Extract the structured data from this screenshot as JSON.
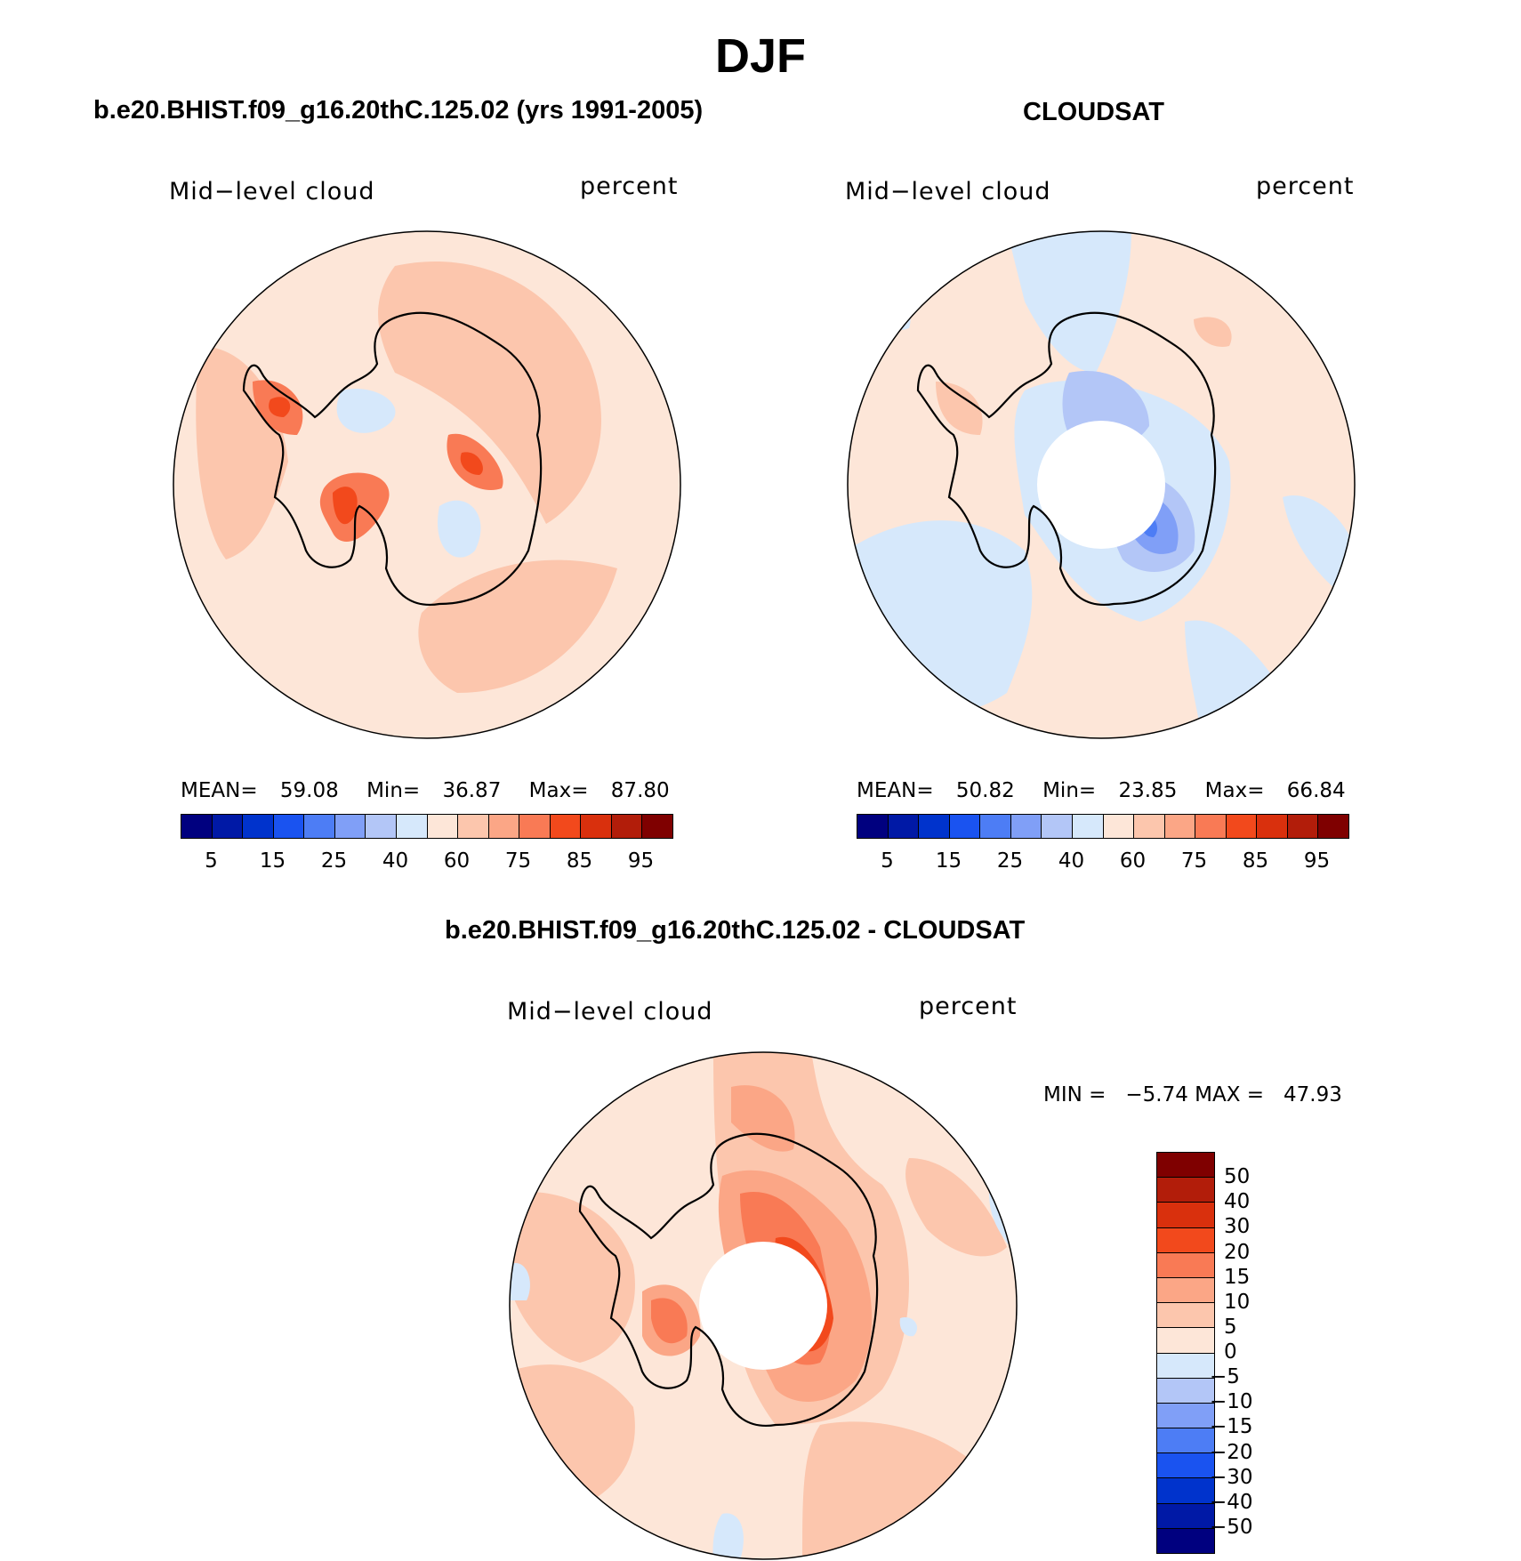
{
  "title": "DJF",
  "panels": [
    {
      "id": "model",
      "title": "b.e20.BHIST.f09_g16.20thC.125.02 (yrs 1991-2005)",
      "left_label": "Mid−level cloud",
      "right_label": "percent",
      "mean_label": "MEAN=",
      "mean": "59.08",
      "min_label": "Min=",
      "min": "36.87",
      "max_label": "Max=",
      "max": "87.80"
    },
    {
      "id": "obs",
      "title": "CLOUDSAT",
      "left_label": "Mid−level cloud",
      "right_label": "percent",
      "mean_label": "MEAN=",
      "mean": "50.82",
      "min_label": "Min=",
      "min": "23.85",
      "max_label": "Max=",
      "max": "66.84"
    },
    {
      "id": "diff",
      "title": "b.e20.BHIST.f09_g16.20thC.125.02 - CLOUDSAT",
      "left_label": "Mid−level cloud",
      "right_label": "percent",
      "minmax_text": "MIN =   −5.74 MAX =   47.93"
    }
  ],
  "colorbar_abs": {
    "colors": [
      "#00007f",
      "#0019a6",
      "#0033cc",
      "#1a53f0",
      "#4d7df5",
      "#809ff7",
      "#b3c6f7",
      "#d6e8fb",
      "#fde6d8",
      "#fcc6ad",
      "#fba686",
      "#f97a55",
      "#f2491c",
      "#d9300d",
      "#b21d0a",
      "#7f0000"
    ],
    "tick_labels": [
      "5",
      "15",
      "25",
      "40",
      "60",
      "75",
      "85",
      "95"
    ]
  },
  "colorbar_diff": {
    "colors_top_to_bottom": [
      "#7f0000",
      "#b21d0a",
      "#d9300d",
      "#f2491c",
      "#f97a55",
      "#fba686",
      "#fcc6ad",
      "#fde6d8",
      "#d6e8fb",
      "#b3c6f7",
      "#809ff7",
      "#4d7df5",
      "#1a53f0",
      "#0033cc",
      "#0019a6",
      "#00007f"
    ],
    "tick_labels_top_to_bottom": [
      "50",
      "40",
      "30",
      "20",
      "15",
      "10",
      "5",
      "0",
      "−5",
      "−10",
      "−15",
      "−20",
      "−30",
      "−40",
      "−50"
    ]
  }
}
